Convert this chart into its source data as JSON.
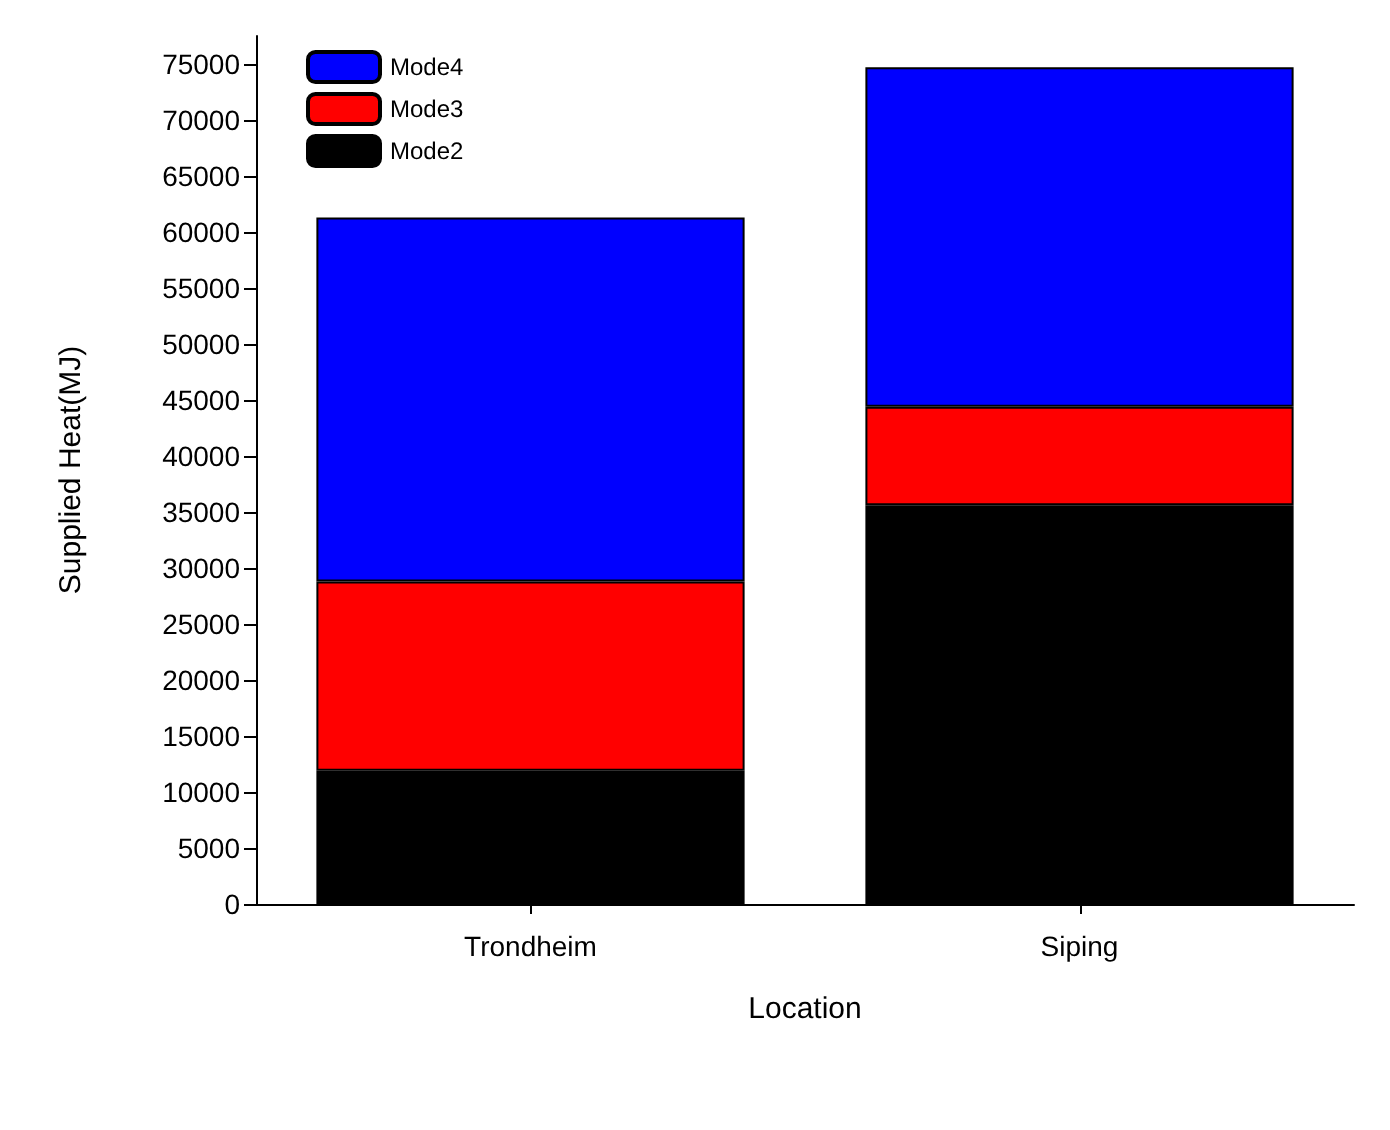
{
  "chart_data": {
    "type": "bar",
    "stacked": true,
    "xlabel": "Location",
    "ylabel": "Supplied Heat(MJ)",
    "categories": [
      "Trondheim",
      "Siping"
    ],
    "series": [
      {
        "name": "Mode2",
        "color": "#000000",
        "values": [
          11900,
          35600
        ]
      },
      {
        "name": "Mode3",
        "color": "#ff0000",
        "values": [
          16900,
          8800
        ]
      },
      {
        "name": "Mode4",
        "color": "#0000ff",
        "values": [
          32500,
          30300
        ]
      }
    ],
    "ylim": [
      0,
      77500
    ],
    "yticks": [
      0,
      5000,
      10000,
      15000,
      20000,
      25000,
      30000,
      35000,
      40000,
      45000,
      50000,
      55000,
      60000,
      65000,
      70000,
      75000
    ],
    "grid": false,
    "legend": "top left"
  }
}
